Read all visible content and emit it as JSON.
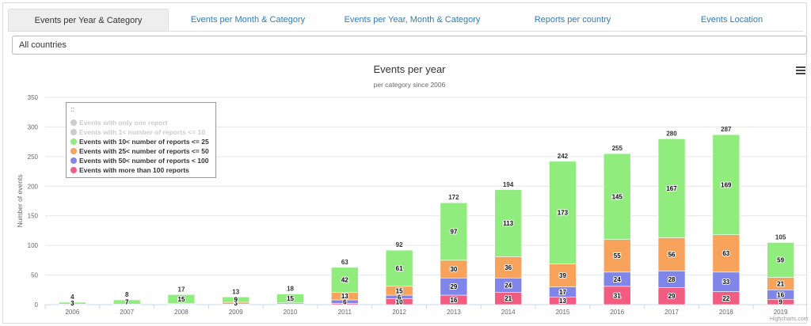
{
  "tabs": [
    {
      "label": "Events per Year & Category",
      "active": true
    },
    {
      "label": "Events per Month & Category",
      "active": false
    },
    {
      "label": "Events per Year, Month & Category",
      "active": false
    },
    {
      "label": "Reports per country",
      "active": false
    },
    {
      "label": "Events Location",
      "active": false
    }
  ],
  "filter": {
    "selected": "All countries"
  },
  "chart_data": {
    "type": "bar",
    "stacked": true,
    "title": "Events per year",
    "subtitle": "per category since 2006",
    "ylabel": "Number of events",
    "ylim": [
      0,
      350
    ],
    "yticks": [
      0,
      50,
      100,
      150,
      200,
      250,
      300,
      350
    ],
    "grid": true,
    "legend_position": "top-left",
    "categories": [
      "2006",
      "2007",
      "2008",
      "2009",
      "2010",
      "2011",
      "2012",
      "2013",
      "2014",
      "2015",
      "2016",
      "2017",
      "2018",
      "2019"
    ],
    "totals": [
      4,
      8,
      17,
      13,
      18,
      63,
      92,
      172,
      194,
      242,
      255,
      280,
      287,
      105
    ],
    "series": [
      {
        "name": "Events with only one report",
        "color": "#c8c8c8",
        "visible": false,
        "values": [
          0,
          0,
          0,
          0,
          0,
          0,
          0,
          0,
          0,
          0,
          0,
          0,
          0,
          0
        ]
      },
      {
        "name": "Events with 1< number of reports <= 10",
        "color": "#c8c8c8",
        "visible": false,
        "values": [
          0,
          0,
          0,
          0,
          0,
          0,
          0,
          0,
          0,
          0,
          0,
          0,
          0,
          0
        ]
      },
      {
        "name": "Events with 10< number of reports <= 25",
        "color": "#90ed7d",
        "visible": true,
        "values": [
          3,
          7,
          15,
          9,
          15,
          42,
          61,
          97,
          113,
          173,
          145,
          167,
          169,
          59
        ]
      },
      {
        "name": "Events with 25< number of reports <= 50",
        "color": "#f7a35c",
        "visible": true,
        "values": [
          0,
          0,
          1,
          3,
          2,
          13,
          15,
          30,
          36,
          39,
          55,
          56,
          63,
          21
        ]
      },
      {
        "name": "Events with 50< number of reports < 100",
        "color": "#8085e9",
        "visible": true,
        "values": [
          1,
          1,
          1,
          1,
          1,
          6,
          6,
          29,
          24,
          17,
          24,
          28,
          33,
          16
        ]
      },
      {
        "name": "Events with more than 100 reports",
        "color": "#f15c80",
        "visible": true,
        "values": [
          0,
          0,
          0,
          0,
          0,
          2,
          10,
          16,
          21,
          13,
          31,
          29,
          22,
          9
        ]
      }
    ],
    "data_label_threshold": 3
  },
  "legend": {
    "handle": "::"
  },
  "credits": "Highcharts.com",
  "icons": {
    "menu": "hamburger-menu-icon"
  }
}
